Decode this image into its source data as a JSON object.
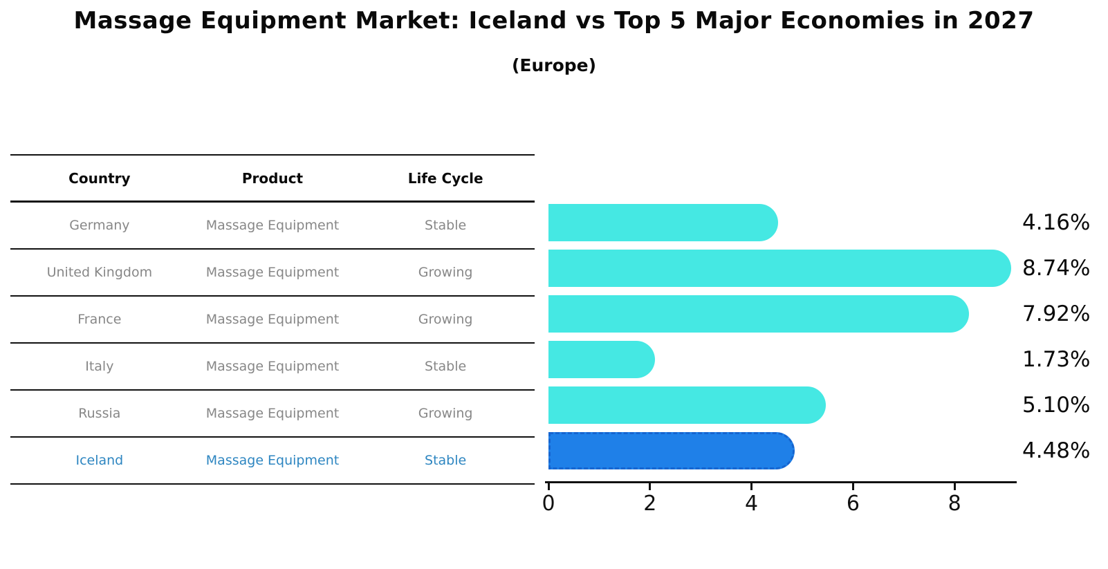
{
  "page": {
    "title": "Massage Equipment Market: Iceland vs Top 5 Major Economies in 2027",
    "subtitle": "(Europe)"
  },
  "table": {
    "headers": {
      "country": "Country",
      "product": "Product",
      "life_cycle": "Life Cycle"
    },
    "rows": [
      {
        "country": "Germany",
        "product": "Massage Equipment",
        "life_cycle": "Stable"
      },
      {
        "country": "United Kingdom",
        "product": "Massage Equipment",
        "life_cycle": "Growing"
      },
      {
        "country": "France",
        "product": "Massage Equipment",
        "life_cycle": "Growing"
      },
      {
        "country": "Italy",
        "product": "Massage Equipment",
        "life_cycle": "Stable"
      },
      {
        "country": "Russia",
        "product": "Massage Equipment",
        "life_cycle": "Growing"
      },
      {
        "country": "Iceland",
        "product": "Massage Equipment",
        "life_cycle": "Stable"
      }
    ]
  },
  "chart_data": {
    "type": "bar",
    "orientation": "horizontal",
    "title": "Massage Equipment Market: Iceland vs Top 5 Major Economies in 2027",
    "subtitle": "(Europe)",
    "categories": [
      "Germany",
      "United Kingdom",
      "France",
      "Italy",
      "Russia",
      "Iceland"
    ],
    "values": [
      4.16,
      8.74,
      7.92,
      1.73,
      5.1,
      4.48
    ],
    "value_labels": [
      "4.16%",
      "8.74%",
      "7.92%",
      "1.73%",
      "5.10%",
      "4.48%"
    ],
    "x_ticks": [
      "0",
      "2",
      "4",
      "6",
      "8"
    ],
    "xlim": [
      0,
      9.2
    ],
    "grid": false,
    "legend": false,
    "bar_color": "#45e8e3",
    "highlight_index": 5,
    "highlight_color": "#1f80e8",
    "highlight_border_color": "#1565d0",
    "highlight_text_color": "#2e86c1",
    "muted_text_color": "#878787"
  }
}
